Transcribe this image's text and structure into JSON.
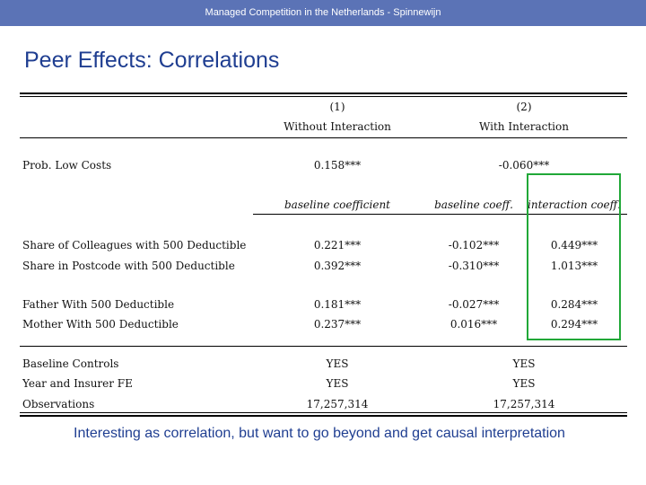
{
  "header": {
    "text": "Managed Competition in the Netherlands - Spinnewijn"
  },
  "slide_title": "Peer Effects: Correlations",
  "table": {
    "col1_num": "(1)",
    "col1_name": "Without Interaction",
    "col2_num": "(2)",
    "col2_name": "With Interaction",
    "prob_row": {
      "label": "Prob. Low Costs",
      "c1": "0.158***",
      "c2": "-0.060***"
    },
    "subheaders": {
      "baseline_coefficient": "baseline coefficient",
      "baseline_coeff": "baseline coeff.",
      "interaction_coeff": "interaction coeff."
    },
    "rows": [
      {
        "label": "Share of Colleagues with 500 Deductible",
        "c1": "0.221***",
        "c2": "-0.102***",
        "c3": "0.449***"
      },
      {
        "label": "Share in Postcode with 500 Deductible",
        "c1": "0.392***",
        "c2": "-0.310***",
        "c3": "1.013***"
      },
      {
        "label": "Father With 500 Deductible",
        "c1": "0.181***",
        "c2": "-0.027***",
        "c3": "0.284***"
      },
      {
        "label": "Mother With 500 Deductible",
        "c1": "0.237***",
        "c2": "0.016***",
        "c3": "0.294***"
      }
    ],
    "controls": [
      {
        "label": "Baseline Controls",
        "c1": "YES",
        "c2": "YES"
      },
      {
        "label": "Year and Insurer FE",
        "c1": "YES",
        "c2": "YES"
      },
      {
        "label": "Observations",
        "c1": "17,257,314",
        "c2": "17,257,314"
      }
    ]
  },
  "footnote": "Interesting as correlation, but want to go beyond and get causal interpretation",
  "colors": {
    "header_bar": "#5b73b6",
    "title": "#1f3e91",
    "highlight_box": "#21a838"
  }
}
